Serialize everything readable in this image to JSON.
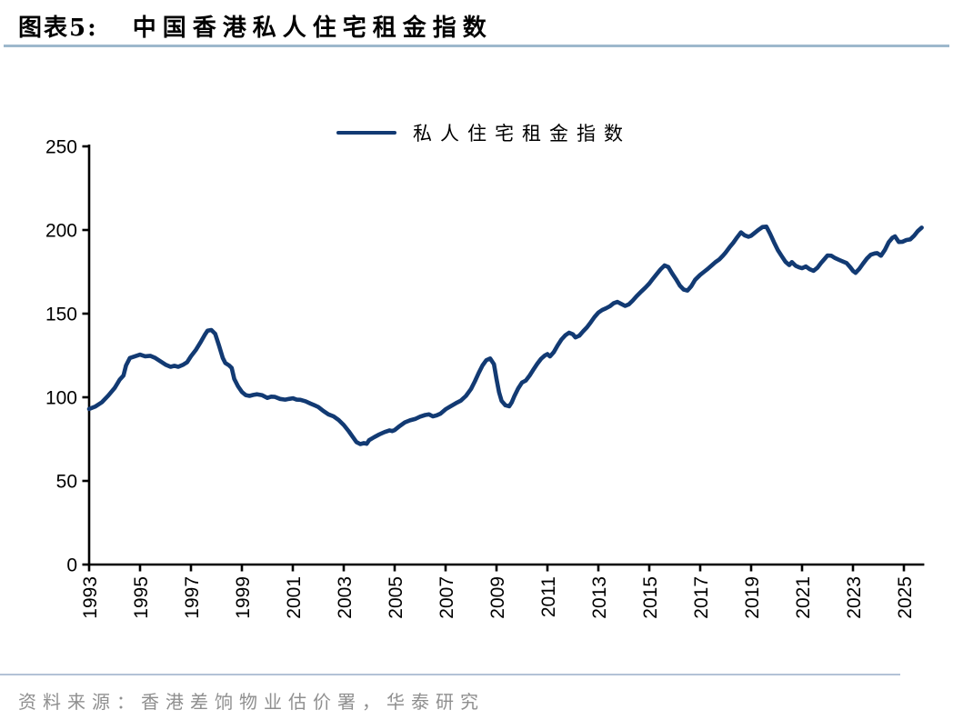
{
  "figure": {
    "label": "图表5:",
    "title": "中国香港私人住宅租金指数",
    "source": "资料来源：香港差饷物业估价署，华泰研究"
  },
  "style": {
    "title_rule_color": "#9db8cc",
    "footer_rule_color": "#b3c2d6",
    "source_text_color": "#8f8f8f",
    "axis_color": "#000000",
    "line_color": "#123a73"
  },
  "chart_data": {
    "type": "line",
    "title": "",
    "xlabel": "",
    "ylabel": "",
    "grid": false,
    "legend": [
      "私人住宅租金指数"
    ],
    "legend_position": "top-center",
    "xlim": [
      1993,
      2025.8
    ],
    "ylim": [
      0,
      250
    ],
    "y_ticks": [
      0,
      50,
      100,
      150,
      200,
      250
    ],
    "x_ticks": [
      1993,
      1995,
      1997,
      1999,
      2001,
      2003,
      2005,
      2007,
      2009,
      2011,
      2013,
      2015,
      2017,
      2019,
      2021,
      2023,
      2025
    ],
    "x_tick_rotation": -90,
    "series": [
      {
        "name": "私人住宅租金指数",
        "color": "#123a73",
        "points": [
          [
            1993.0,
            93
          ],
          [
            1993.25,
            94.5
          ],
          [
            1993.5,
            97
          ],
          [
            1993.75,
            101
          ],
          [
            1994.0,
            105.5
          ],
          [
            1994.2,
            110.5
          ],
          [
            1994.35,
            113
          ],
          [
            1994.45,
            119
          ],
          [
            1994.6,
            123.5
          ],
          [
            1994.8,
            124.5
          ],
          [
            1995.0,
            125.5
          ],
          [
            1995.2,
            124.5
          ],
          [
            1995.4,
            124.8
          ],
          [
            1995.6,
            123.5
          ],
          [
            1995.8,
            121.5
          ],
          [
            1996.0,
            119.5
          ],
          [
            1996.2,
            118.2
          ],
          [
            1996.35,
            118.8
          ],
          [
            1996.5,
            118.2
          ],
          [
            1996.7,
            119.5
          ],
          [
            1996.85,
            121
          ],
          [
            1997.0,
            124.5
          ],
          [
            1997.2,
            128.5
          ],
          [
            1997.4,
            133.5
          ],
          [
            1997.55,
            137.5
          ],
          [
            1997.65,
            139.8
          ],
          [
            1997.8,
            140.2
          ],
          [
            1997.95,
            138
          ],
          [
            1998.1,
            131
          ],
          [
            1998.25,
            123.5
          ],
          [
            1998.35,
            120.5
          ],
          [
            1998.5,
            119
          ],
          [
            1998.6,
            117.5
          ],
          [
            1998.7,
            111
          ],
          [
            1998.85,
            106.5
          ],
          [
            1999.0,
            103.2
          ],
          [
            1999.15,
            101.3
          ],
          [
            1999.3,
            100.8
          ],
          [
            1999.45,
            101.4
          ],
          [
            1999.6,
            101.8
          ],
          [
            1999.8,
            101.2
          ],
          [
            2000.0,
            99.6
          ],
          [
            2000.15,
            100.4
          ],
          [
            2000.3,
            100.2
          ],
          [
            2000.5,
            99
          ],
          [
            2000.7,
            98.6
          ],
          [
            2000.85,
            99
          ],
          [
            2001.0,
            99.4
          ],
          [
            2001.15,
            98.6
          ],
          [
            2001.3,
            98.5
          ],
          [
            2001.5,
            97.6
          ],
          [
            2001.7,
            96.2
          ],
          [
            2001.85,
            95.2
          ],
          [
            2002.0,
            94.2
          ],
          [
            2002.2,
            91.8
          ],
          [
            2002.4,
            89.8
          ],
          [
            2002.6,
            88.6
          ],
          [
            2002.8,
            86.4
          ],
          [
            2003.0,
            83.4
          ],
          [
            2003.2,
            79.6
          ],
          [
            2003.35,
            76.4
          ],
          [
            2003.5,
            73.2
          ],
          [
            2003.65,
            72
          ],
          [
            2003.8,
            72.6
          ],
          [
            2003.9,
            72.2
          ],
          [
            2004.0,
            74.4
          ],
          [
            2004.2,
            76.2
          ],
          [
            2004.4,
            77.8
          ],
          [
            2004.6,
            79.2
          ],
          [
            2004.8,
            80.2
          ],
          [
            2004.9,
            79.8
          ],
          [
            2005.0,
            80.4
          ],
          [
            2005.2,
            82.8
          ],
          [
            2005.4,
            85
          ],
          [
            2005.6,
            86.2
          ],
          [
            2005.8,
            87
          ],
          [
            2006.0,
            88.4
          ],
          [
            2006.2,
            89.4
          ],
          [
            2006.35,
            89.8
          ],
          [
            2006.5,
            88.6
          ],
          [
            2006.65,
            89.2
          ],
          [
            2006.8,
            90.2
          ],
          [
            2007.0,
            92.8
          ],
          [
            2007.2,
            94.6
          ],
          [
            2007.4,
            96.4
          ],
          [
            2007.6,
            98
          ],
          [
            2007.8,
            100.8
          ],
          [
            2008.0,
            105
          ],
          [
            2008.15,
            109.5
          ],
          [
            2008.3,
            114.5
          ],
          [
            2008.45,
            119
          ],
          [
            2008.6,
            122.2
          ],
          [
            2008.75,
            123.2
          ],
          [
            2008.9,
            119.8
          ],
          [
            2009.0,
            111
          ],
          [
            2009.1,
            103
          ],
          [
            2009.2,
            97.8
          ],
          [
            2009.35,
            95.2
          ],
          [
            2009.5,
            94.6
          ],
          [
            2009.6,
            97
          ],
          [
            2009.7,
            100.6
          ],
          [
            2009.85,
            105.2
          ],
          [
            2010.0,
            108.8
          ],
          [
            2010.15,
            110
          ],
          [
            2010.3,
            113
          ],
          [
            2010.45,
            116.6
          ],
          [
            2010.6,
            120
          ],
          [
            2010.75,
            123
          ],
          [
            2010.9,
            125
          ],
          [
            2011.0,
            125.8
          ],
          [
            2011.1,
            124.4
          ],
          [
            2011.25,
            127
          ],
          [
            2011.4,
            131
          ],
          [
            2011.55,
            134.5
          ],
          [
            2011.7,
            137
          ],
          [
            2011.85,
            138.6
          ],
          [
            2012.0,
            137.6
          ],
          [
            2012.1,
            135.8
          ],
          [
            2012.25,
            136.8
          ],
          [
            2012.4,
            139.4
          ],
          [
            2012.55,
            141.8
          ],
          [
            2012.7,
            144.8
          ],
          [
            2012.85,
            148
          ],
          [
            2013.0,
            150.6
          ],
          [
            2013.15,
            152.2
          ],
          [
            2013.3,
            153.2
          ],
          [
            2013.45,
            154.4
          ],
          [
            2013.6,
            156.2
          ],
          [
            2013.75,
            157
          ],
          [
            2013.9,
            155.8
          ],
          [
            2014.05,
            154.6
          ],
          [
            2014.2,
            155.6
          ],
          [
            2014.35,
            157.8
          ],
          [
            2014.5,
            160.4
          ],
          [
            2014.7,
            163.4
          ],
          [
            2014.85,
            165.6
          ],
          [
            2015.0,
            168
          ],
          [
            2015.15,
            171
          ],
          [
            2015.3,
            173.8
          ],
          [
            2015.45,
            176.6
          ],
          [
            2015.6,
            178.8
          ],
          [
            2015.75,
            177.8
          ],
          [
            2015.9,
            174
          ],
          [
            2016.05,
            170.6
          ],
          [
            2016.2,
            166.8
          ],
          [
            2016.35,
            164.4
          ],
          [
            2016.5,
            163.8
          ],
          [
            2016.65,
            166.4
          ],
          [
            2016.8,
            170.2
          ],
          [
            2017.0,
            173.2
          ],
          [
            2017.15,
            175
          ],
          [
            2017.3,
            176.8
          ],
          [
            2017.45,
            178.8
          ],
          [
            2017.6,
            180.8
          ],
          [
            2017.75,
            182.4
          ],
          [
            2017.9,
            184.8
          ],
          [
            2018.0,
            186.6
          ],
          [
            2018.15,
            189.6
          ],
          [
            2018.3,
            192.4
          ],
          [
            2018.45,
            195.6
          ],
          [
            2018.6,
            198.6
          ],
          [
            2018.75,
            196.8
          ],
          [
            2018.9,
            196
          ],
          [
            2019.0,
            196.6
          ],
          [
            2019.15,
            198.4
          ],
          [
            2019.3,
            200.2
          ],
          [
            2019.45,
            201.8
          ],
          [
            2019.6,
            202
          ],
          [
            2019.75,
            197.6
          ],
          [
            2019.9,
            192.6
          ],
          [
            2020.05,
            188
          ],
          [
            2020.2,
            184.4
          ],
          [
            2020.35,
            181
          ],
          [
            2020.5,
            179
          ],
          [
            2020.6,
            180.8
          ],
          [
            2020.75,
            178.6
          ],
          [
            2020.9,
            177.6
          ],
          [
            2021.0,
            177.2
          ],
          [
            2021.15,
            178.2
          ],
          [
            2021.3,
            176.6
          ],
          [
            2021.45,
            175.6
          ],
          [
            2021.6,
            177.4
          ],
          [
            2021.75,
            180.4
          ],
          [
            2021.9,
            183
          ],
          [
            2022.0,
            184.8
          ],
          [
            2022.15,
            184.6
          ],
          [
            2022.3,
            183.2
          ],
          [
            2022.45,
            182.2
          ],
          [
            2022.6,
            181.2
          ],
          [
            2022.75,
            180.2
          ],
          [
            2022.9,
            177.6
          ],
          [
            2023.0,
            175.6
          ],
          [
            2023.1,
            174.4
          ],
          [
            2023.25,
            176.8
          ],
          [
            2023.4,
            180
          ],
          [
            2023.55,
            183
          ],
          [
            2023.7,
            185.2
          ],
          [
            2023.85,
            186
          ],
          [
            2023.95,
            186.2
          ],
          [
            2024.1,
            184.6
          ],
          [
            2024.25,
            188
          ],
          [
            2024.4,
            192.6
          ],
          [
            2024.55,
            195.4
          ],
          [
            2024.65,
            196.2
          ],
          [
            2024.8,
            192.8
          ],
          [
            2024.95,
            193
          ],
          [
            2025.1,
            194
          ],
          [
            2025.25,
            194.4
          ],
          [
            2025.4,
            196.6
          ],
          [
            2025.55,
            199.4
          ],
          [
            2025.7,
            201.4
          ]
        ]
      }
    ]
  }
}
